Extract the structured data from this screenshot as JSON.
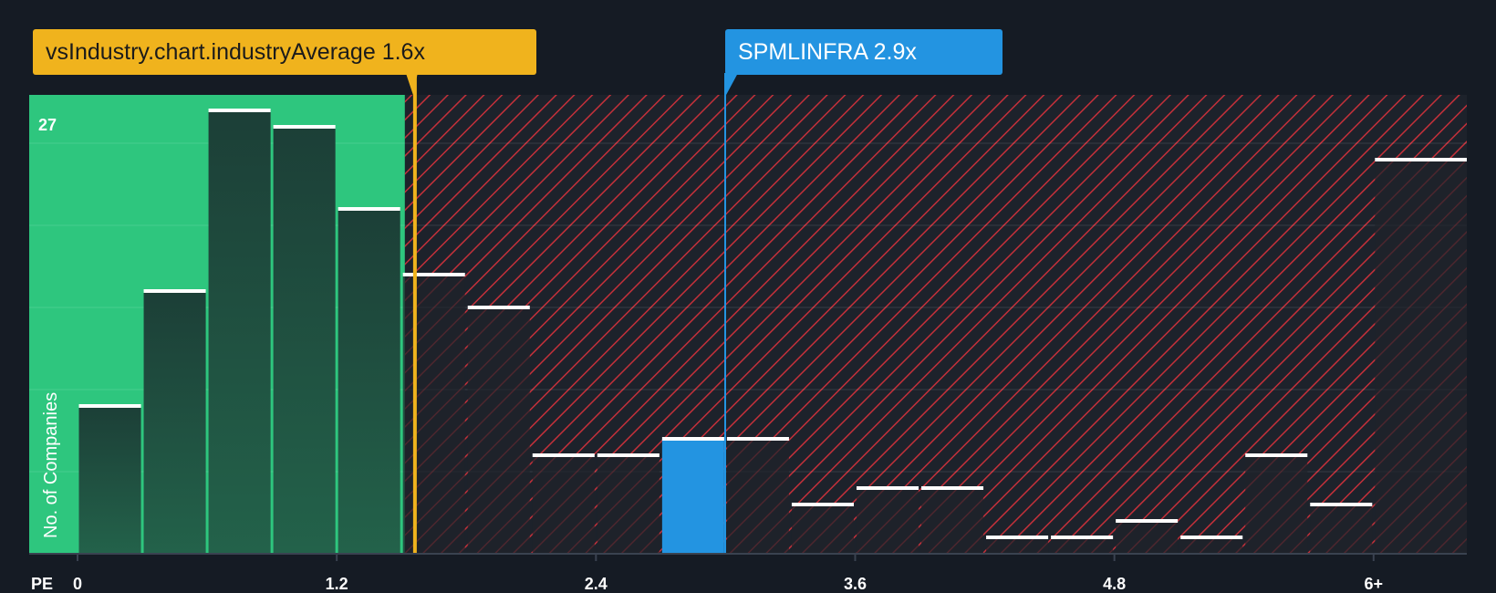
{
  "chart_data": {
    "type": "bar",
    "title": "",
    "xlabel": "PE",
    "ylabel": "No. of Companies",
    "xlim": [
      -0.2,
      6.15
    ],
    "ylim": [
      0,
      28
    ],
    "y_max_label": "27",
    "x_ticks": [
      {
        "value": 0,
        "label": "0"
      },
      {
        "value": 1.2,
        "label": "1.2"
      },
      {
        "value": 2.4,
        "label": "2.4"
      },
      {
        "value": 3.6,
        "label": "3.6"
      },
      {
        "value": 4.8,
        "label": "4.8"
      },
      {
        "value": 6.0,
        "label": "6+"
      }
    ],
    "bin_width": 0.3,
    "bins": [
      {
        "start": 0.0,
        "count": 9
      },
      {
        "start": 0.3,
        "count": 16
      },
      {
        "start": 0.6,
        "count": 27
      },
      {
        "start": 0.9,
        "count": 26
      },
      {
        "start": 1.2,
        "count": 21
      },
      {
        "start": 1.5,
        "count": 17
      },
      {
        "start": 1.8,
        "count": 15
      },
      {
        "start": 2.1,
        "count": 6
      },
      {
        "start": 2.4,
        "count": 6
      },
      {
        "start": 2.7,
        "count": 7
      },
      {
        "start": 3.0,
        "count": 7
      },
      {
        "start": 3.3,
        "count": 3
      },
      {
        "start": 3.6,
        "count": 4
      },
      {
        "start": 3.9,
        "count": 4
      },
      {
        "start": 4.2,
        "count": 1
      },
      {
        "start": 4.5,
        "count": 1
      },
      {
        "start": 4.8,
        "count": 2
      },
      {
        "start": 5.1,
        "count": 1
      },
      {
        "start": 5.4,
        "count": 6
      },
      {
        "start": 5.7,
        "count": 3
      },
      {
        "start": 6.0,
        "count": 24
      }
    ],
    "industry_average": {
      "label": "vsIndustry.chart.industryAverage 1.6x",
      "value": 1.6
    },
    "company": {
      "label": "SPMLINFRA 2.9x",
      "value": 2.9,
      "bin_index": 9
    },
    "colors": {
      "background": "#151b24",
      "fair_zone": "#2ec67e",
      "bar_fill": "#1f4a3e",
      "bar_fill_dark": "#222a33",
      "bar_cap": "#ffffff",
      "hatch_bg": "#1d222b",
      "hatch_line": "#c4303a",
      "company": "#2394e1",
      "industry": "#f0b31d"
    }
  }
}
